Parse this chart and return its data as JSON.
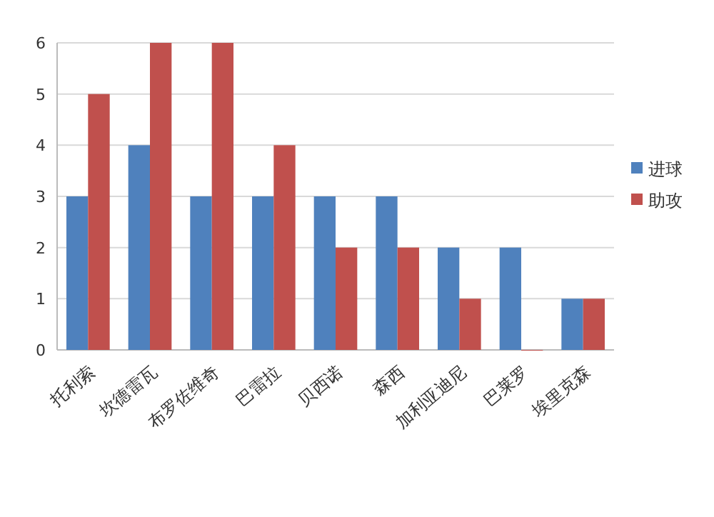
{
  "chart_data": {
    "type": "bar",
    "categories": [
      "托利索",
      "坎德雷瓦",
      "布罗佐维奇",
      "巴雷拉",
      "贝西诺",
      "森西",
      "加利亚迪尼",
      "巴莱罗",
      "埃里克森"
    ],
    "series": [
      {
        "name": "进球",
        "color": "#4f81bd",
        "values": [
          3,
          4,
          3,
          3,
          3,
          3,
          2,
          2,
          1
        ]
      },
      {
        "name": "助攻",
        "color": "#c0504d",
        "values": [
          5,
          6,
          6,
          4,
          2,
          2,
          1,
          0,
          1
        ]
      }
    ],
    "ylim": [
      0,
      6
    ],
    "yticks": [
      0,
      1,
      2,
      3,
      4,
      5,
      6
    ],
    "grid": "y",
    "legend": "right"
  }
}
